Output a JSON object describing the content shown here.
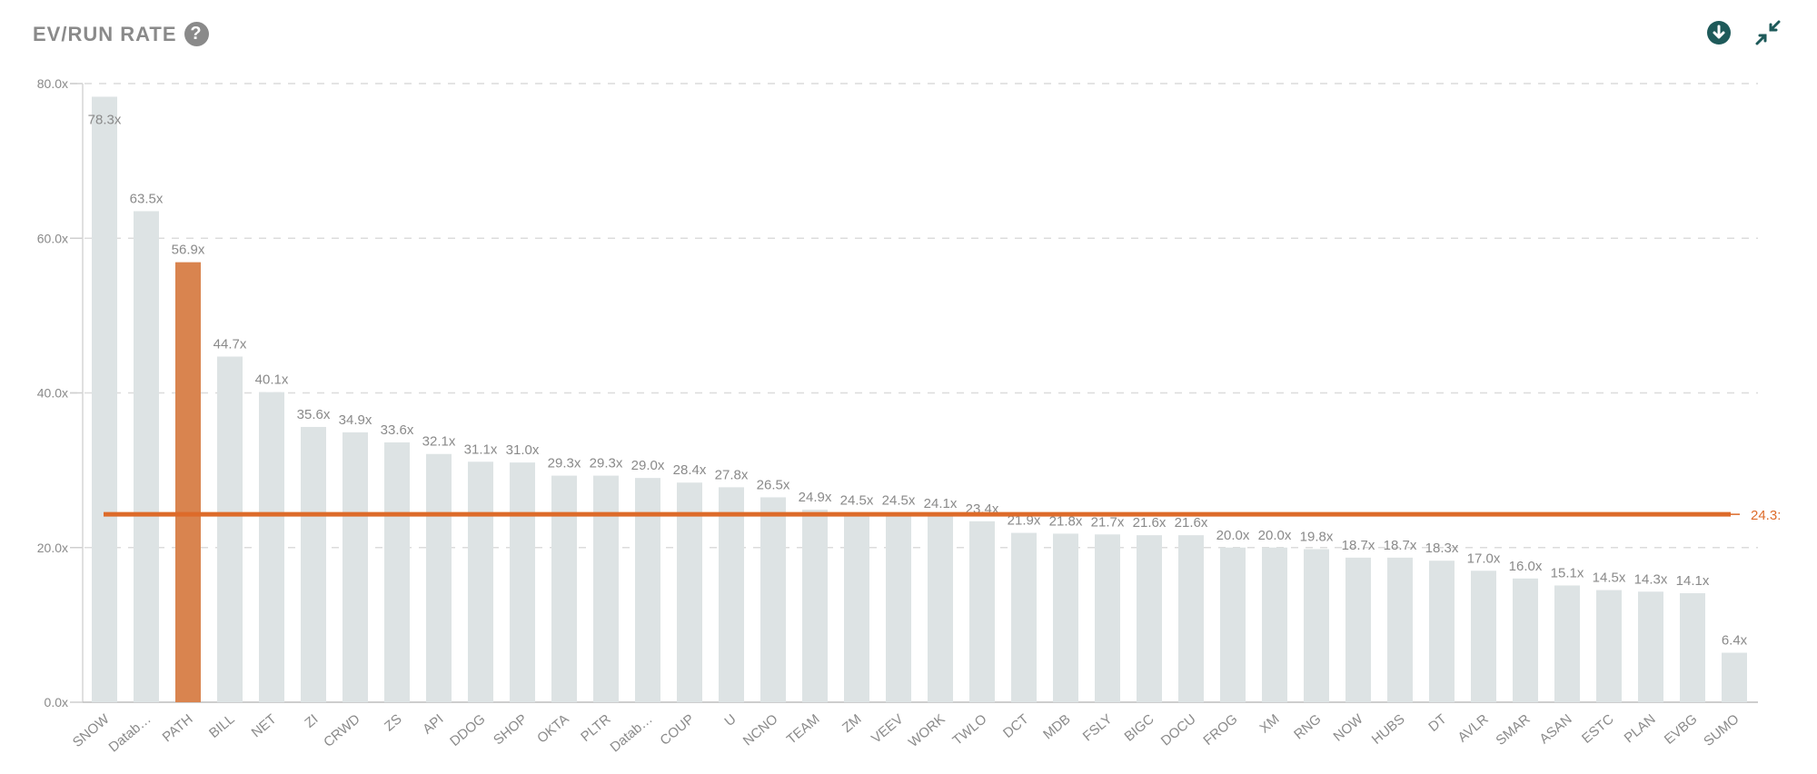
{
  "header": {
    "title": "EV/RUN RATE",
    "help_icon": "question-circle-icon",
    "download_icon": "download-icon",
    "collapse_icon": "collapse-icon"
  },
  "colors": {
    "bar": "#dde3e4",
    "highlight": "#d9844f",
    "average": "#dd6b2a",
    "text": "#8a8a8a",
    "icon": "#1e5a5a"
  },
  "chart_data": {
    "type": "bar",
    "title": "EV/RUN RATE",
    "xlabel": "",
    "ylabel": "",
    "ylim": [
      0,
      80
    ],
    "yticks": [
      "0.0x",
      "20.0x",
      "40.0x",
      "60.0x",
      "80.0x"
    ],
    "ytick_values": [
      0,
      20,
      40,
      60,
      80
    ],
    "grid": true,
    "categories": [
      "SNOW",
      "Datab…",
      "PATH",
      "BILL",
      "NET",
      "ZI",
      "CRWD",
      "ZS",
      "API",
      "DDOG",
      "SHOP",
      "OKTA",
      "PLTR",
      "Datab…",
      "COUP",
      "U",
      "NCNO",
      "TEAM",
      "ZM",
      "VEEV",
      "WORK",
      "TWLO",
      "DCT",
      "MDB",
      "FSLY",
      "BIGC",
      "DOCU",
      "FROG",
      "XM",
      "RNG",
      "NOW",
      "HUBS",
      "DT",
      "AVLR",
      "SMAR",
      "ASAN",
      "ESTC",
      "PLAN",
      "EVBG",
      "SUMO"
    ],
    "values": [
      78.3,
      63.5,
      56.9,
      44.7,
      40.1,
      35.6,
      34.9,
      33.6,
      32.1,
      31.1,
      31.0,
      29.3,
      29.3,
      29.0,
      28.4,
      27.8,
      26.5,
      24.9,
      24.5,
      24.5,
      24.1,
      23.4,
      21.9,
      21.8,
      21.7,
      21.6,
      21.6,
      20.0,
      20.0,
      19.8,
      18.7,
      18.7,
      18.3,
      17.0,
      16.0,
      15.1,
      14.5,
      14.3,
      14.1,
      6.4
    ],
    "value_labels": [
      "78.3x",
      "63.5x",
      "56.9x",
      "44.7x",
      "40.1x",
      "35.6x",
      "34.9x",
      "33.6x",
      "32.1x",
      "31.1x",
      "31.0x",
      "29.3x",
      "29.3x",
      "29.0x",
      "28.4x",
      "27.8x",
      "26.5x",
      "24.9x",
      "24.5x",
      "24.5x",
      "24.1x",
      "23.4x",
      "21.9x",
      "21.8x",
      "21.7x",
      "21.6x",
      "21.6x",
      "20.0x",
      "20.0x",
      "19.8x",
      "18.7x",
      "18.7x",
      "18.3x",
      "17.0x",
      "16.0x",
      "15.1x",
      "14.5x",
      "14.3x",
      "14.1x",
      "6.4x"
    ],
    "highlight_category": "PATH",
    "average": {
      "value": 24.3,
      "label": "24.3:"
    }
  }
}
